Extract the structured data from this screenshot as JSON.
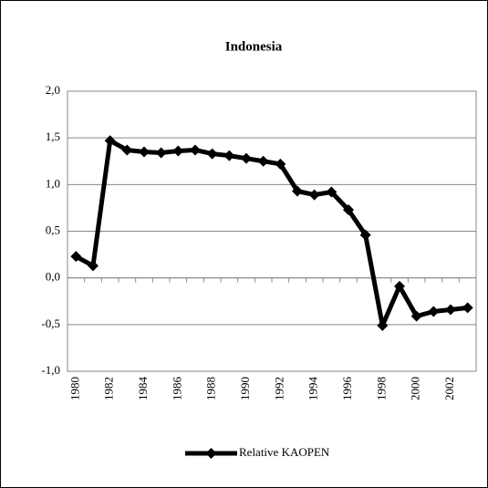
{
  "chart_data": {
    "type": "line",
    "title": "Indonesia",
    "categories": [
      "1980",
      null,
      "1982",
      null,
      "1984",
      null,
      "1986",
      null,
      "1988",
      null,
      "1990",
      null,
      "1992",
      null,
      "1994",
      null,
      "1996",
      null,
      "1998",
      null,
      "2000",
      null,
      "2002",
      null
    ],
    "series": [
      {
        "name": "Relative KAOPEN",
        "color": "#000000",
        "values": [
          0.23,
          0.13,
          1.47,
          1.37,
          1.35,
          1.34,
          1.36,
          1.37,
          1.33,
          1.31,
          1.28,
          1.25,
          1.22,
          0.93,
          0.89,
          0.92,
          0.73,
          0.46,
          -0.51,
          -0.09,
          -0.41,
          -0.36,
          -0.34,
          -0.32
        ]
      }
    ],
    "ylim": [
      -1,
      2
    ],
    "yticks": [
      {
        "value": -1,
        "label": "-1,0"
      },
      {
        "value": -0.5,
        "label": "-0,5"
      },
      {
        "value": 0,
        "label": "0,0"
      },
      {
        "value": 0.5,
        "label": "0,5"
      },
      {
        "value": 1,
        "label": "1,0"
      },
      {
        "value": 1.5,
        "label": "1,5"
      },
      {
        "value": 2,
        "label": "2,0"
      }
    ],
    "grid": true,
    "legend": "bottom"
  }
}
